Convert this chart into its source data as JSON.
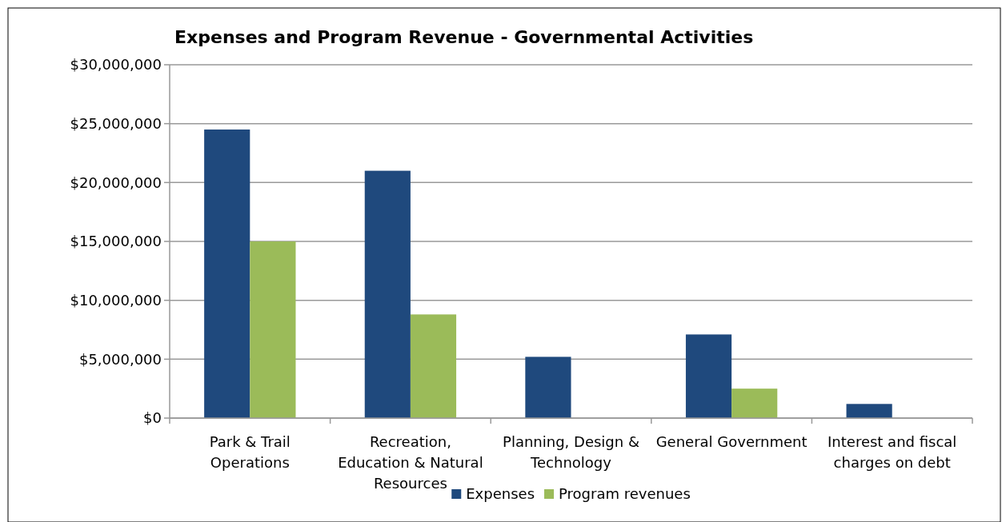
{
  "chart_data": {
    "type": "bar",
    "title": "Expenses and Program Revenue - Governmental Activities",
    "categories": [
      "Park & Trail Operations",
      "Recreation, Education & Natural Resources",
      "Planning, Design & Technology",
      "General Government",
      "Interest and fiscal charges on debt"
    ],
    "series": [
      {
        "name": "Expenses",
        "color": "#1f497d",
        "values": [
          24500000,
          21000000,
          5200000,
          7100000,
          1200000
        ]
      },
      {
        "name": "Program revenues",
        "color": "#9bbb59",
        "values": [
          15000000,
          8800000,
          0,
          2500000,
          0
        ]
      }
    ],
    "ylim": [
      0,
      30000000
    ],
    "yticks": [
      {
        "value": 0,
        "label": "$0"
      },
      {
        "value": 5000000,
        "label": "$5,000,000"
      },
      {
        "value": 10000000,
        "label": "$10,000,000"
      },
      {
        "value": 15000000,
        "label": "$15,000,000"
      },
      {
        "value": 20000000,
        "label": "$20,000,000"
      },
      {
        "value": 25000000,
        "label": "$25,000,000"
      },
      {
        "value": 30000000,
        "label": "$30,000,000"
      }
    ],
    "grid": "y",
    "legend": "bottom"
  }
}
